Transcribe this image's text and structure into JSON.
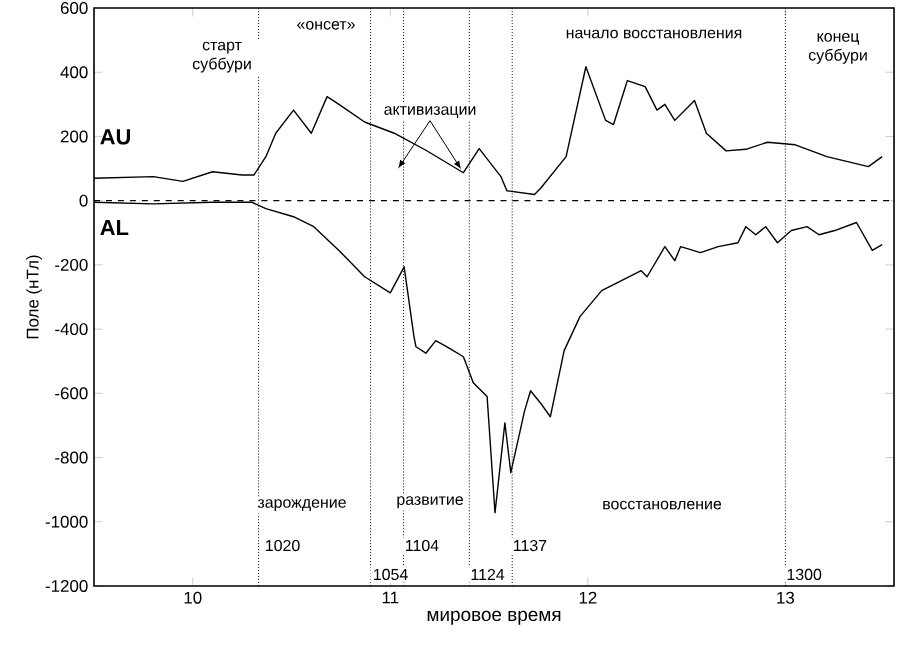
{
  "chart_data": {
    "type": "line",
    "xlabel": "мировое время",
    "ylabel": "Поле (нТл)",
    "xlim": [
      9.5,
      13.55
    ],
    "ylim": [
      -1200,
      600
    ],
    "xticks": [
      10,
      11,
      12,
      13
    ],
    "yticks": [
      -1200,
      -1000,
      -800,
      -600,
      -400,
      -200,
      0,
      200,
      400,
      600
    ],
    "series": [
      {
        "name": "AU",
        "color": "#000000",
        "x": [
          9.5,
          9.8,
          9.95,
          10.1,
          10.25,
          10.31,
          10.37,
          10.42,
          10.51,
          10.6,
          10.68,
          10.74,
          10.87,
          11.02,
          11.18,
          11.37,
          11.45,
          11.56,
          11.59,
          11.73,
          11.76,
          11.89,
          11.99,
          12.09,
          12.13,
          12.2,
          12.29,
          12.35,
          12.39,
          12.44,
          12.54,
          12.6,
          12.7,
          12.8,
          12.91,
          13.05,
          13.21,
          13.42,
          13.49
        ],
        "values": [
          70,
          75,
          60,
          90,
          80,
          80,
          137,
          210,
          282,
          210,
          324,
          300,
          245,
          210,
          157,
          87,
          162,
          75,
          31,
          19,
          38,
          137,
          417,
          250,
          237,
          374,
          355,
          282,
          300,
          250,
          312,
          210,
          155,
          160,
          182,
          174,
          137,
          106,
          137
        ]
      },
      {
        "name": "AL",
        "color": "#000000",
        "x": [
          9.5,
          9.8,
          10.1,
          10.3,
          10.37,
          10.51,
          10.61,
          10.74,
          10.87,
          11.0,
          11.07,
          11.12,
          11.13,
          11.18,
          11.23,
          11.3,
          11.37,
          11.42,
          11.49,
          11.53,
          11.58,
          11.61,
          11.68,
          11.71,
          11.76,
          11.81,
          11.88,
          11.96,
          12.07,
          12.17,
          12.27,
          12.3,
          12.39,
          12.44,
          12.47,
          12.57,
          12.66,
          12.76,
          12.8,
          12.85,
          12.9,
          12.96,
          13.03,
          13.11,
          13.17,
          13.25,
          13.36,
          13.44,
          13.49
        ],
        "values": [
          -5,
          -10,
          -5,
          -5,
          -25,
          -50,
          -80,
          -155,
          -237,
          -287,
          -206,
          -424,
          -455,
          -475,
          -436,
          -460,
          -486,
          -567,
          -610,
          -972,
          -692,
          -847,
          -654,
          -592,
          -630,
          -673,
          -467,
          -361,
          -280,
          -249,
          -218,
          -237,
          -143,
          -187,
          -143,
          -162,
          -143,
          -131,
          -81,
          -106,
          -81,
          -131,
          -93,
          -81,
          -106,
          -93,
          -68,
          -155,
          -137
        ]
      }
    ],
    "ref_lines": [
      {
        "axis": "y",
        "value": 0,
        "line_style": "dashed"
      },
      {
        "axis": "x",
        "value": 10.333,
        "line_style": "dotted"
      },
      {
        "axis": "x",
        "value": 10.9,
        "line_style": "dotted"
      },
      {
        "axis": "x",
        "value": 11.067,
        "line_style": "dotted"
      },
      {
        "axis": "x",
        "value": 11.4,
        "line_style": "dotted"
      },
      {
        "axis": "x",
        "value": 11.617,
        "line_style": "dotted"
      },
      {
        "axis": "x",
        "value": 13,
        "line_style": "dotted"
      }
    ],
    "annotations": [
      "старт суббури",
      "«онсет»",
      {
        "text": "активизации",
        "x": 11.37,
        "y": 87
      },
      "начало восстановления",
      "конец суббури",
      "зарождение",
      "развитие",
      "восстановление",
      "1020",
      "1054",
      "1104",
      "1124",
      "1137",
      "1300"
    ]
  }
}
